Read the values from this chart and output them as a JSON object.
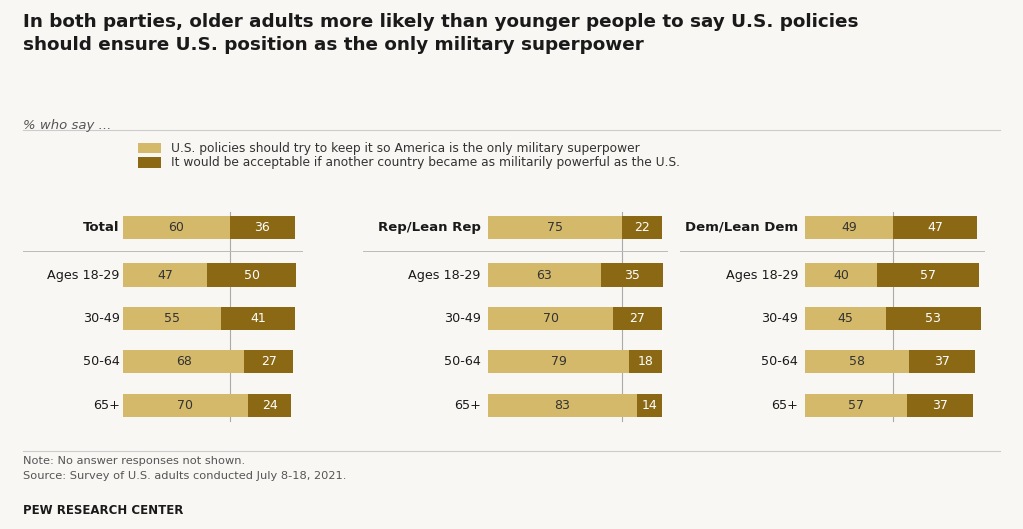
{
  "title": "In both parties, older adults more likely than younger people to say U.S. policies\nshould ensure U.S. position as the only military superpower",
  "subtitle": "% who say ...",
  "legend": [
    "U.S. policies should try to keep it so America is the only military superpower",
    "It would be acceptable if another country became as militarily powerful as the U.S."
  ],
  "color_light": "#d4b96a",
  "color_dark": "#8b6914",
  "note": "Note: No answer responses not shown.\nSource: Survey of U.S. adults conducted July 8-18, 2021.",
  "source_bold": "PEW RESEARCH CENTER",
  "groups": [
    {
      "header": "Total",
      "rows": [
        {
          "label": "Total",
          "v1": 60,
          "v2": 36
        }
      ],
      "age_rows": [
        {
          "label": "Ages 18-29",
          "v1": 47,
          "v2": 50
        },
        {
          "label": "30-49",
          "v1": 55,
          "v2": 41
        },
        {
          "label": "50-64",
          "v1": 68,
          "v2": 27
        },
        {
          "label": "65+",
          "v1": 70,
          "v2": 24
        }
      ]
    },
    {
      "header": "Rep/Lean Rep",
      "rows": [
        {
          "label": "Rep/Lean Rep",
          "v1": 75,
          "v2": 22
        }
      ],
      "age_rows": [
        {
          "label": "Ages 18-29",
          "v1": 63,
          "v2": 35
        },
        {
          "label": "30-49",
          "v1": 70,
          "v2": 27
        },
        {
          "label": "50-64",
          "v1": 79,
          "v2": 18
        },
        {
          "label": "65+",
          "v1": 83,
          "v2": 14
        }
      ]
    },
    {
      "header": "Dem/Lean Dem",
      "rows": [
        {
          "label": "Dem/Lean Dem",
          "v1": 49,
          "v2": 47
        }
      ],
      "age_rows": [
        {
          "label": "Ages 18-29",
          "v1": 40,
          "v2": 57
        },
        {
          "label": "30-49",
          "v1": 45,
          "v2": 53
        },
        {
          "label": "50-64",
          "v1": 58,
          "v2": 37
        },
        {
          "label": "65+",
          "v1": 57,
          "v2": 37
        }
      ]
    }
  ],
  "background_color": "#f9f7f4"
}
